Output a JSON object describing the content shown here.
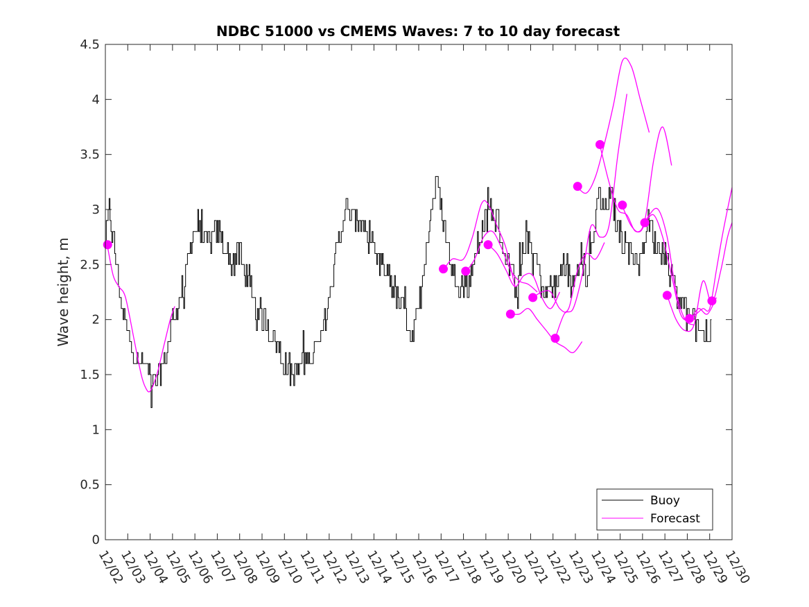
{
  "chart_data": {
    "type": "line",
    "title": "NDBC 51000 vs CMEMS Waves: 7 to 10 day forecast",
    "xlabel": "",
    "ylabel": "Wave height, m",
    "xlim": [
      0,
      28
    ],
    "ylim": [
      0,
      4.5
    ],
    "yticks": [
      0,
      0.5,
      1,
      1.5,
      2,
      2.5,
      3,
      3.5,
      4,
      4.5
    ],
    "ytick_labels": [
      "0",
      "0.5",
      "1",
      "1.5",
      "2",
      "2.5",
      "3",
      "3.5",
      "4",
      "4.5"
    ],
    "xtick_labels": [
      "12/02",
      "12/03",
      "12/04",
      "12/05",
      "12/06",
      "12/07",
      "12/08",
      "12/09",
      "12/10",
      "12/11",
      "12/12",
      "12/13",
      "12/14",
      "12/15",
      "12/16",
      "12/17",
      "12/18",
      "12/19",
      "12/20",
      "12/21",
      "12/22",
      "12/23",
      "12/24",
      "12/25",
      "12/26",
      "12/27",
      "12/28",
      "12/29",
      "12/30"
    ],
    "legend": {
      "position": "bottom-right",
      "entries": [
        "Buoy",
        "Forecast"
      ]
    },
    "colors": {
      "buoy": "#000000",
      "forecast": "#ff00ff"
    },
    "series": [
      {
        "name": "Buoy",
        "noise": 0.12,
        "x": [
          0,
          0.15,
          0.3,
          0.5,
          0.8,
          1.0,
          1.4,
          1.8,
          2.0,
          2.2,
          2.6,
          3.0,
          3.5,
          3.9,
          4.2,
          4.6,
          5.1,
          5.6,
          6.0,
          6.3,
          6.8,
          7.1,
          7.6,
          8.0,
          8.4,
          8.8,
          9.2,
          9.6,
          10.0,
          10.3,
          10.7,
          11.1,
          11.5,
          11.9,
          12.3,
          12.7,
          13.0,
          13.2,
          13.4,
          13.6,
          13.8,
          14.0,
          14.2,
          14.5,
          14.8,
          15.1,
          15.5,
          15.9,
          16.2,
          16.4,
          16.8,
          17.2,
          17.5,
          17.8,
          18.0,
          18.3,
          18.6,
          18.8,
          19.0,
          19.3,
          19.6,
          19.9,
          20.2,
          20.5,
          20.8,
          21.2,
          21.5,
          21.8,
          22.0,
          22.3,
          22.6,
          22.9,
          23.2,
          23.5,
          23.9,
          24.2,
          24.6,
          25.0,
          25.3,
          25.6,
          25.9,
          26.2,
          26.4,
          26.7,
          27.0,
          27.1
        ],
        "y": [
          2.7,
          3.0,
          2.8,
          2.5,
          2.0,
          1.9,
          1.6,
          1.6,
          1.5,
          1.4,
          1.6,
          2.0,
          2.3,
          2.8,
          2.8,
          2.7,
          2.8,
          2.5,
          2.6,
          2.4,
          2.0,
          2.0,
          1.8,
          1.6,
          1.5,
          1.6,
          1.7,
          1.8,
          2.2,
          2.6,
          3.0,
          2.9,
          2.9,
          2.6,
          2.5,
          2.4,
          2.2,
          2.1,
          2.1,
          1.9,
          1.9,
          2.1,
          2.5,
          2.9,
          3.3,
          2.9,
          2.4,
          2.3,
          2.3,
          2.5,
          2.8,
          3.0,
          2.9,
          2.6,
          2.5,
          2.3,
          2.5,
          2.8,
          2.7,
          2.5,
          2.2,
          2.3,
          2.3,
          2.6,
          2.3,
          2.6,
          2.4,
          2.7,
          3.2,
          3.0,
          3.1,
          2.8,
          2.7,
          2.6,
          2.5,
          2.9,
          2.7,
          2.6,
          2.4,
          2.2,
          2.1,
          1.9,
          2.0,
          1.9,
          1.9,
          2.0
        ]
      }
    ],
    "forecast_segments": [
      {
        "x": [
          0.1,
          0.35,
          0.6,
          0.9,
          1.3,
          1.6,
          1.8,
          2.0,
          2.3,
          2.6,
          2.9,
          3.1
        ],
        "y": [
          2.66,
          2.4,
          2.3,
          2.2,
          1.8,
          1.5,
          1.38,
          1.35,
          1.5,
          1.75,
          2.0,
          2.12
        ]
      },
      {
        "x": [
          15.1,
          15.5,
          16.0,
          16.4,
          16.8,
          17.1,
          17.5,
          17.9,
          18.3
        ],
        "y": [
          2.45,
          2.55,
          2.55,
          2.75,
          3.05,
          3.05,
          2.85,
          2.65,
          2.3
        ]
      },
      {
        "x": [
          16.1,
          16.5,
          16.9,
          17.3,
          17.7,
          18.1,
          18.5,
          18.9,
          19.3
        ],
        "y": [
          2.43,
          2.55,
          2.75,
          2.8,
          2.65,
          2.45,
          2.35,
          2.32,
          2.25
        ]
      },
      {
        "x": [
          17.1,
          17.5,
          17.9,
          18.3,
          18.7,
          19.1,
          19.5,
          19.9,
          20.3
        ],
        "y": [
          2.68,
          2.6,
          2.45,
          2.3,
          2.4,
          2.4,
          2.2,
          2.1,
          2.25
        ]
      },
      {
        "x": [
          18.1,
          18.5,
          18.9,
          19.3,
          19.7,
          20.1,
          20.5,
          20.9,
          21.3
        ],
        "y": [
          2.05,
          2.05,
          2.1,
          2.0,
          1.9,
          1.8,
          1.75,
          1.7,
          1.8
        ]
      },
      {
        "x": [
          19.1,
          19.5,
          19.9,
          20.3,
          20.7,
          21.1,
          21.5,
          21.9,
          22.3
        ],
        "y": [
          2.2,
          2.25,
          2.25,
          2.1,
          2.1,
          2.45,
          2.6,
          2.55,
          2.7
        ]
      },
      {
        "x": [
          20.1,
          20.5,
          20.9,
          21.3,
          21.7,
          22.1,
          22.5,
          22.9,
          23.3
        ],
        "y": [
          1.83,
          2.05,
          2.1,
          2.4,
          2.85,
          2.75,
          2.85,
          3.5,
          4.05
        ]
      },
      {
        "x": [
          21.1,
          21.5,
          21.9,
          22.3,
          22.7,
          23.1,
          23.5,
          23.9,
          24.3
        ],
        "y": [
          3.2,
          3.15,
          3.3,
          3.6,
          3.95,
          4.35,
          4.3,
          4.0,
          3.7
        ]
      },
      {
        "x": [
          22.1,
          22.5,
          22.9,
          23.3,
          23.7,
          24.1,
          24.5,
          24.9,
          25.3
        ],
        "y": [
          3.58,
          3.25,
          3.0,
          2.95,
          2.8,
          2.9,
          3.45,
          3.75,
          3.4
        ]
      },
      {
        "x": [
          23.1,
          23.5,
          23.9,
          24.3,
          24.7,
          25.1,
          25.5,
          25.9,
          26.3
        ],
        "y": [
          3.03,
          2.85,
          2.8,
          2.95,
          3.0,
          2.75,
          2.25,
          2.0,
          1.95
        ]
      },
      {
        "x": [
          24.1,
          24.5,
          24.9,
          25.3,
          25.7,
          26.1,
          26.5,
          26.9,
          27.3
        ],
        "y": [
          2.88,
          2.95,
          2.75,
          2.4,
          2.05,
          2.0,
          2.1,
          2.05,
          2.2
        ]
      },
      {
        "x": [
          25.1,
          25.5,
          25.9,
          26.3,
          26.7,
          27.1,
          27.5,
          27.8,
          28.0
        ],
        "y": [
          2.22,
          2.0,
          1.9,
          1.95,
          2.35,
          2.15,
          2.45,
          2.75,
          2.88
        ]
      },
      {
        "x": [
          26.1,
          26.4,
          26.7,
          27.0,
          27.3,
          27.6,
          28.0
        ],
        "y": [
          2.0,
          2.05,
          2.1,
          2.1,
          2.45,
          2.8,
          3.2
        ]
      }
    ],
    "forecast_markers": {
      "x": [
        0.1,
        15.1,
        16.1,
        17.1,
        18.1,
        19.1,
        20.1,
        21.1,
        22.1,
        23.1,
        24.1,
        25.1,
        26.1,
        27.1
      ],
      "y": [
        2.68,
        2.46,
        2.44,
        2.68,
        2.05,
        2.2,
        1.83,
        3.21,
        3.59,
        3.04,
        2.88,
        2.22,
        2.01,
        2.17
      ]
    }
  }
}
